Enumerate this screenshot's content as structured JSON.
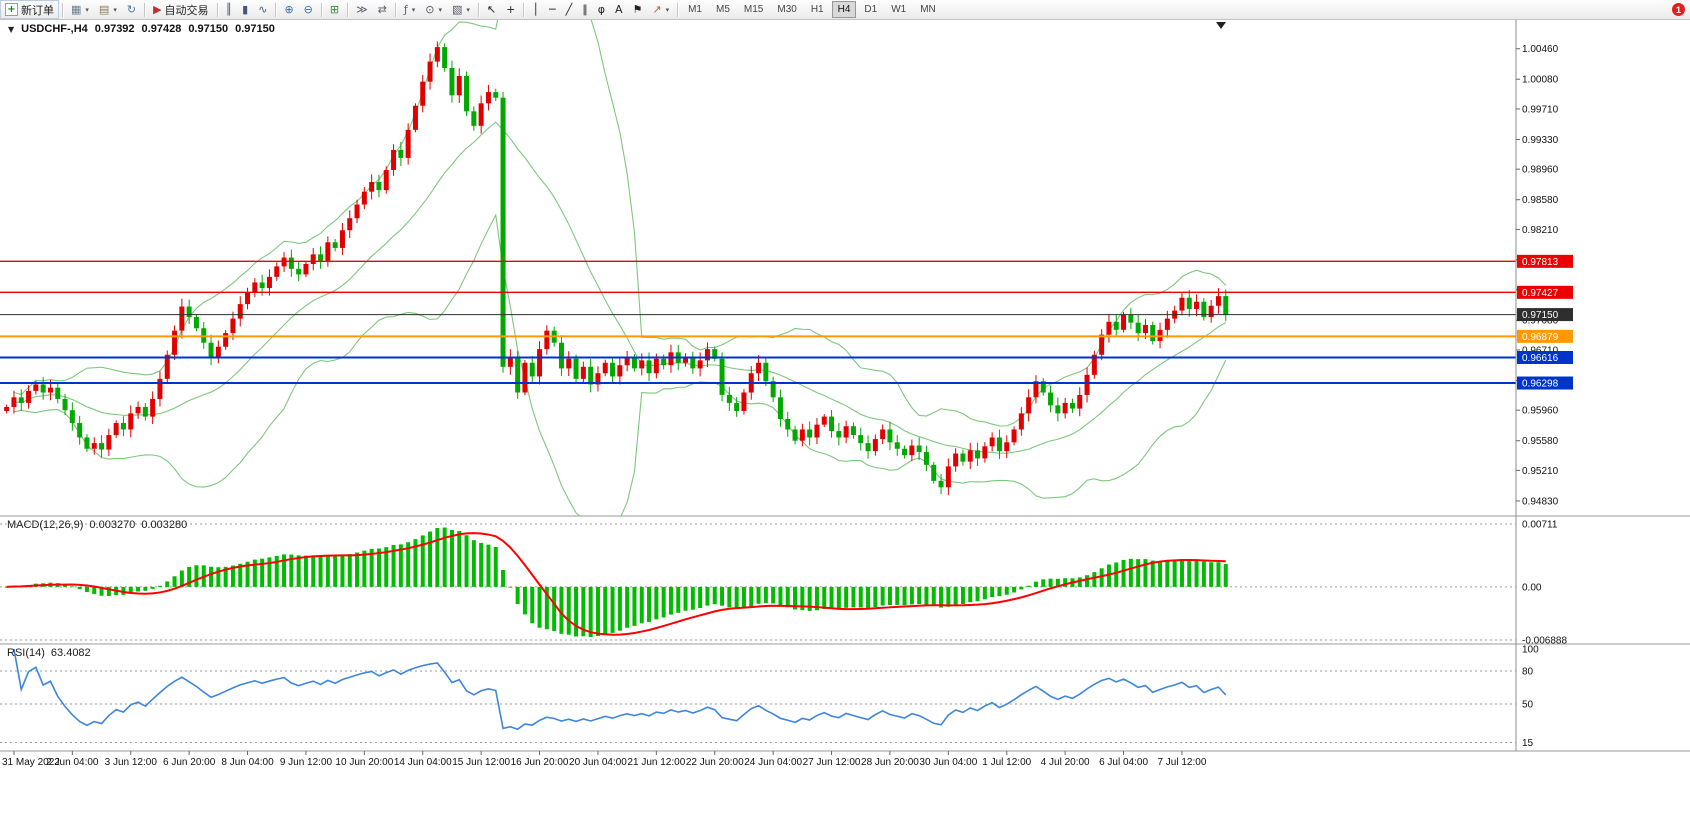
{
  "toolbar": {
    "notification_count": "1",
    "timeframes": [
      "M1",
      "M5",
      "M15",
      "M30",
      "H1",
      "H4",
      "D1",
      "W1",
      "MN"
    ],
    "active_timeframe": "H4",
    "groups": [
      [
        {
          "name": "new-order-button",
          "icon": "new-order",
          "label": "新订单"
        }
      ],
      [
        {
          "name": "new-chart-button",
          "icon": "new-chart",
          "caret": true
        },
        {
          "name": "profiles-button",
          "icon": "profiles",
          "caret": true
        },
        {
          "name": "refresh-button",
          "icon": "refresh"
        }
      ],
      [
        {
          "name": "autotrading-button",
          "icon": "autotrading",
          "label": "自动交易"
        }
      ],
      [
        {
          "name": "bar-chart-button",
          "icon": "bar-chart"
        },
        {
          "name": "candle-chart-button",
          "icon": "candle-chart"
        },
        {
          "name": "line-chart-button",
          "icon": "line-chart"
        }
      ],
      [
        {
          "name": "zoom-in-button",
          "icon": "zoom-in"
        },
        {
          "name": "zoom-out-button",
          "icon": "zoom-out"
        }
      ],
      [
        {
          "name": "tile-windows-button",
          "icon": "tile-windows"
        }
      ],
      [
        {
          "name": "auto-scroll-button",
          "icon": "auto-scroll"
        },
        {
          "name": "chart-shift-button",
          "icon": "chart-shift"
        }
      ],
      [
        {
          "name": "indicators-button",
          "icon": "indicators",
          "caret": true
        },
        {
          "name": "periods-button",
          "icon": "periods",
          "caret": true
        },
        {
          "name": "templates-button",
          "icon": "templates",
          "caret": true
        }
      ],
      [
        {
          "name": "cursor-button",
          "icon": "cursor"
        },
        {
          "name": "crosshair-button",
          "icon": "crosshair"
        }
      ],
      [
        {
          "name": "vertical-line-button",
          "icon": "vertical-line"
        },
        {
          "name": "horizontal-line-button",
          "icon": "horizontal-line"
        },
        {
          "name": "trendline-button",
          "icon": "trendline"
        },
        {
          "name": "channel-button",
          "icon": "channel"
        },
        {
          "name": "fibonacci-button",
          "icon": "fibonacci"
        },
        {
          "name": "text-button",
          "icon": "text"
        },
        {
          "name": "label-button",
          "icon": "label"
        },
        {
          "name": "arrows-button",
          "icon": "arrows",
          "caret": true
        }
      ]
    ]
  },
  "chart_header": {
    "symbol": "USDCHF-,H4",
    "open": "0.97392",
    "high": "0.97428",
    "low": "0.97150",
    "close": "0.97150"
  },
  "macd_panel": {
    "header_label": "MACD(12,26,9)",
    "value_main": "0.003270",
    "value_signal": "0.003280",
    "axis_labels": [
      "0.00711",
      "0.00",
      "-0.006888"
    ]
  },
  "rsi_panel": {
    "header_label": "RSI(14)",
    "value": "63.4082",
    "axis_labels": [
      "100",
      "80",
      "50",
      "15"
    ],
    "levels": [
      80,
      50,
      15
    ]
  },
  "colors": {
    "candle_up": "#e00000",
    "candle_down": "#00a800",
    "bollinger": "#7dc87d",
    "macd_histogram": "#00bb00",
    "macd_signal": "#ff0000",
    "rsi_line": "#3d85dd",
    "axis_text": "#111111",
    "separator": "#9a9a9a"
  },
  "chart_data": {
    "type": "candlestick",
    "symbol": "USDCHF",
    "timeframe": "H4",
    "ylim": [
      0.9468,
      1.0078
    ],
    "price_axis_ticks": [
      "1.00460",
      "1.00080",
      "0.99710",
      "0.99330",
      "0.98960",
      "0.98580",
      "0.98210",
      "0.97830",
      "0.97460",
      "0.97080",
      "0.96710",
      "0.96330",
      "0.95960",
      "0.95580",
      "0.95210",
      "0.94830"
    ],
    "first_open": 0.9595,
    "closes": [
      0.96,
      0.9612,
      0.9605,
      0.962,
      0.9628,
      0.9618,
      0.9624,
      0.961,
      0.9596,
      0.958,
      0.9562,
      0.9548,
      0.9555,
      0.9547,
      0.9565,
      0.958,
      0.9572,
      0.9592,
      0.96,
      0.9588,
      0.961,
      0.9635,
      0.9665,
      0.9695,
      0.9725,
      0.9712,
      0.9698,
      0.968,
      0.9662,
      0.9675,
      0.9692,
      0.971,
      0.9728,
      0.9742,
      0.9755,
      0.9748,
      0.9762,
      0.9775,
      0.9786,
      0.9772,
      0.9765,
      0.9778,
      0.979,
      0.9782,
      0.9805,
      0.9798,
      0.982,
      0.9835,
      0.9852,
      0.9868,
      0.988,
      0.987,
      0.9895,
      0.992,
      0.991,
      0.9945,
      0.9975,
      1.0005,
      1.003,
      1.0048,
      1.0022,
      0.9988,
      1.0012,
      0.9968,
      0.995,
      0.9978,
      0.9992,
      0.9985,
      0.965,
      0.9662,
      0.9618,
      0.9655,
      0.9638,
      0.9672,
      0.9695,
      0.968,
      0.9648,
      0.966,
      0.9635,
      0.965,
      0.9628,
      0.9642,
      0.9655,
      0.9638,
      0.9652,
      0.9662,
      0.9648,
      0.9658,
      0.9642,
      0.966,
      0.9652,
      0.9668,
      0.9655,
      0.9662,
      0.9648,
      0.9658,
      0.9672,
      0.966,
      0.9615,
      0.9605,
      0.9595,
      0.9618,
      0.9642,
      0.9655,
      0.9632,
      0.9612,
      0.9585,
      0.9572,
      0.9558,
      0.9572,
      0.9562,
      0.9578,
      0.9588,
      0.957,
      0.9562,
      0.9576,
      0.9565,
      0.9555,
      0.9545,
      0.956,
      0.9572,
      0.9556,
      0.9548,
      0.954,
      0.9552,
      0.9544,
      0.9528,
      0.9508,
      0.95,
      0.9526,
      0.9542,
      0.9532,
      0.9546,
      0.9536,
      0.9551,
      0.9562,
      0.9545,
      0.9556,
      0.9572,
      0.9592,
      0.9612,
      0.9632,
      0.9618,
      0.9602,
      0.9592,
      0.9605,
      0.9598,
      0.9615,
      0.964,
      0.9665,
      0.969,
      0.9706,
      0.9696,
      0.9715,
      0.9705,
      0.9692,
      0.9702,
      0.9682,
      0.9696,
      0.971,
      0.972,
      0.9736,
      0.9722,
      0.9731,
      0.9712,
      0.9726,
      0.9738,
      0.9715
    ],
    "horizontal_lines": [
      {
        "value": 0.97813,
        "label": "0.97813",
        "color": "#ee0000",
        "width": 1.4,
        "name": "resistance-line-1"
      },
      {
        "value": 0.97427,
        "label": "0.97427",
        "color": "#ee0000",
        "width": 1.4,
        "name": "resistance-line-2"
      },
      {
        "value": 0.9715,
        "label": "0.97150",
        "color": "#2e2e2e",
        "width": 1.0,
        "name": "current-price-line"
      },
      {
        "value": 0.96879,
        "label": "0.96879",
        "color": "#ff9900",
        "width": 2.0,
        "name": "support-line-orange"
      },
      {
        "value": 0.96616,
        "label": "0.96616",
        "color": "#0033cc",
        "width": 2.0,
        "name": "support-line-blue-1"
      },
      {
        "value": 0.96298,
        "label": "0.96298",
        "color": "#0033cc",
        "width": 2.0,
        "name": "support-line-blue-2"
      }
    ],
    "time_labels": [
      "31 May 2022",
      "2 Jun 04:00",
      "3 Jun 12:00",
      "6 Jun 20:00",
      "8 Jun 04:00",
      "9 Jun 12:00",
      "10 Jun 20:00",
      "14 Jun 04:00",
      "15 Jun 12:00",
      "16 Jun 20:00",
      "20 Jun 04:00",
      "21 Jun 12:00",
      "22 Jun 20:00",
      "24 Jun 04:00",
      "27 Jun 12:00",
      "28 Jun 20:00",
      "30 Jun 04:00",
      "1 Jul 12:00",
      "4 Jul 20:00",
      "6 Jul 04:00",
      "7 Jul 12:00"
    ],
    "indicators": [
      {
        "name": "Bollinger Bands",
        "period": 20,
        "deviations": 2
      },
      {
        "name": "MACD",
        "fast": 12,
        "slow": 26,
        "signal": 9
      },
      {
        "name": "RSI",
        "period": 14
      }
    ]
  }
}
